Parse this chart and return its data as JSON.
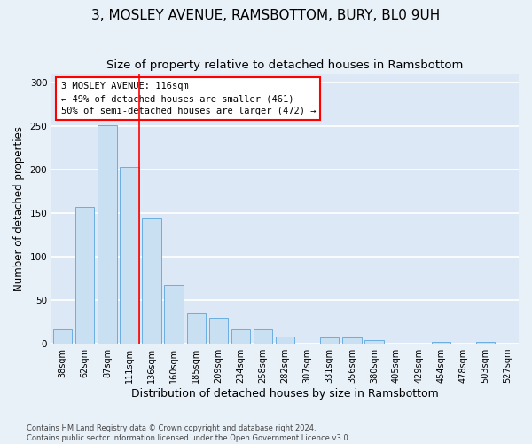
{
  "title": "3, MOSLEY AVENUE, RAMSBOTTOM, BURY, BL0 9UH",
  "subtitle": "Size of property relative to detached houses in Ramsbottom",
  "xlabel": "Distribution of detached houses by size in Ramsbottom",
  "ylabel": "Number of detached properties",
  "categories": [
    "38sqm",
    "62sqm",
    "87sqm",
    "111sqm",
    "136sqm",
    "160sqm",
    "185sqm",
    "209sqm",
    "234sqm",
    "258sqm",
    "282sqm",
    "307sqm",
    "331sqm",
    "356sqm",
    "380sqm",
    "405sqm",
    "429sqm",
    "454sqm",
    "478sqm",
    "503sqm",
    "527sqm"
  ],
  "values": [
    16,
    157,
    251,
    203,
    144,
    67,
    35,
    30,
    16,
    16,
    8,
    0,
    7,
    7,
    4,
    0,
    0,
    2,
    0,
    2,
    0
  ],
  "bar_color": "#c9dff2",
  "bar_edge_color": "#6aaee0",
  "property_line_x": 3.42,
  "annotation_text": "3 MOSLEY AVENUE: 116sqm\n← 49% of detached houses are smaller (461)\n50% of semi-detached houses are larger (472) →",
  "annotation_box_color": "white",
  "annotation_edge_color": "red",
  "line_color": "red",
  "footer_text": "Contains HM Land Registry data © Crown copyright and database right 2024.\nContains public sector information licensed under the Open Government Licence v3.0.",
  "ylim": [
    0,
    310
  ],
  "background_color": "#dce8f5",
  "fig_background_color": "#e8f0f8",
  "grid_color": "white",
  "title_fontsize": 11,
  "subtitle_fontsize": 9.5,
  "tick_fontsize": 7,
  "ylabel_fontsize": 8.5,
  "xlabel_fontsize": 9
}
